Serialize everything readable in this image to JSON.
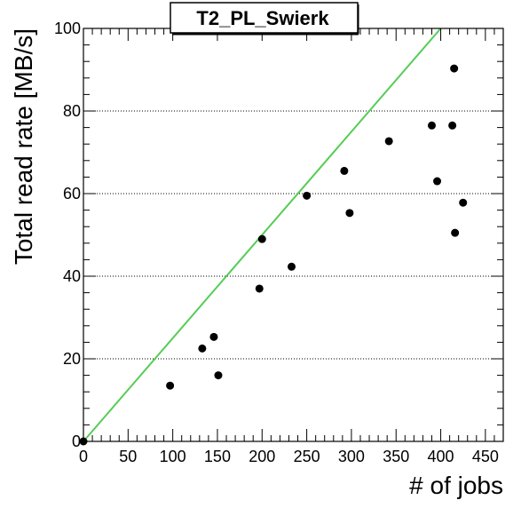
{
  "chart_data": {
    "type": "scatter",
    "title": "T2_PL_Swierk",
    "xlabel": "# of jobs",
    "ylabel": "Total read rate [MB/s]",
    "xlim": [
      0,
      470
    ],
    "ylim": [
      0,
      100
    ],
    "x_ticks": [
      0,
      50,
      100,
      150,
      200,
      250,
      300,
      350,
      400,
      450
    ],
    "y_ticks": [
      0,
      20,
      40,
      60,
      80,
      100
    ],
    "grid": {
      "y": true,
      "x": false
    },
    "colors": {
      "points": "#000000",
      "reference_line": "#55cc55"
    },
    "series": [
      {
        "points": [
          {
            "x": 0,
            "y": 0
          },
          {
            "x": 97,
            "y": 13.5
          },
          {
            "x": 133,
            "y": 22.5
          },
          {
            "x": 146,
            "y": 25.3
          },
          {
            "x": 151,
            "y": 16
          },
          {
            "x": 197,
            "y": 37
          },
          {
            "x": 200,
            "y": 49
          },
          {
            "x": 233,
            "y": 42.3
          },
          {
            "x": 250,
            "y": 59.5
          },
          {
            "x": 292,
            "y": 65.5
          },
          {
            "x": 298,
            "y": 55.3
          },
          {
            "x": 342,
            "y": 72.7
          },
          {
            "x": 390,
            "y": 76.5
          },
          {
            "x": 396,
            "y": 63
          },
          {
            "x": 413,
            "y": 76.5
          },
          {
            "x": 415,
            "y": 90.3
          },
          {
            "x": 416,
            "y": 50.5
          },
          {
            "x": 425,
            "y": 57.8
          }
        ]
      }
    ],
    "reference_line": {
      "from": [
        0,
        0
      ],
      "to": [
        400,
        100
      ]
    }
  }
}
